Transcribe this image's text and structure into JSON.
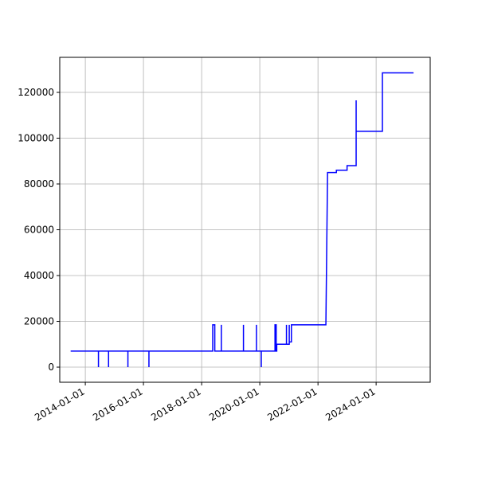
{
  "chart_data": {
    "type": "line",
    "color": "#0000ff",
    "grid": true,
    "x": [
      "2013-07-01",
      "2014-06-15",
      "2014-06-15",
      "2014-06-15",
      "2014-10-20",
      "2014-10-20",
      "2014-10-20",
      "2015-06-20",
      "2015-06-20",
      "2015-06-20",
      "2016-03-10",
      "2016-03-10",
      "2016-03-10",
      "2018-05-20",
      "2018-05-20",
      "2018-06-15",
      "2018-06-15",
      "2018-09-05",
      "2018-09-05",
      "2018-09-05",
      "2019-06-10",
      "2019-06-10",
      "2019-06-10",
      "2019-11-20",
      "2019-11-20",
      "2019-11-20",
      "2020-01-20",
      "2020-01-20",
      "2020-01-20",
      "2020-07-10",
      "2020-07-10",
      "2020-07-25",
      "2020-07-25",
      "2020-08-01",
      "2020-08-01",
      "2020-12-01",
      "2020-12-01",
      "2020-12-01",
      "2021-01-05",
      "2021-01-05",
      "2021-01-05",
      "2021-02-01",
      "2021-02-01",
      "2022-04-10",
      "2022-05-01",
      "2022-08-20",
      "2022-08-20",
      "2023-01-01",
      "2023-01-01",
      "2023-04-25",
      "2023-04-25",
      "2023-04-25",
      "2024-03-20",
      "2024-03-20",
      "2025-04-15"
    ],
    "values": [
      7000,
      7000,
      0,
      7000,
      7000,
      0,
      7000,
      7000,
      0,
      7000,
      7000,
      0,
      7000,
      7000,
      18500,
      18500,
      7000,
      7000,
      18500,
      7000,
      7000,
      18500,
      7000,
      7000,
      18500,
      7000,
      7000,
      0,
      7000,
      7000,
      18500,
      18500,
      7000,
      7000,
      10000,
      10000,
      18500,
      10000,
      10000,
      18500,
      11000,
      11000,
      18500,
      18500,
      85000,
      85000,
      86000,
      86000,
      88000,
      88000,
      116500,
      103000,
      103000,
      128500,
      128500
    ],
    "xlim": [
      "2013-02-14",
      "2025-11-10"
    ],
    "xticks": [
      "2014-01-01",
      "2016-01-01",
      "2018-01-01",
      "2020-01-01",
      "2022-01-01",
      "2024-01-01"
    ],
    "ylim": [
      -6600,
      135300
    ],
    "yticks": [
      0,
      20000,
      40000,
      60000,
      80000,
      100000,
      120000
    ]
  }
}
